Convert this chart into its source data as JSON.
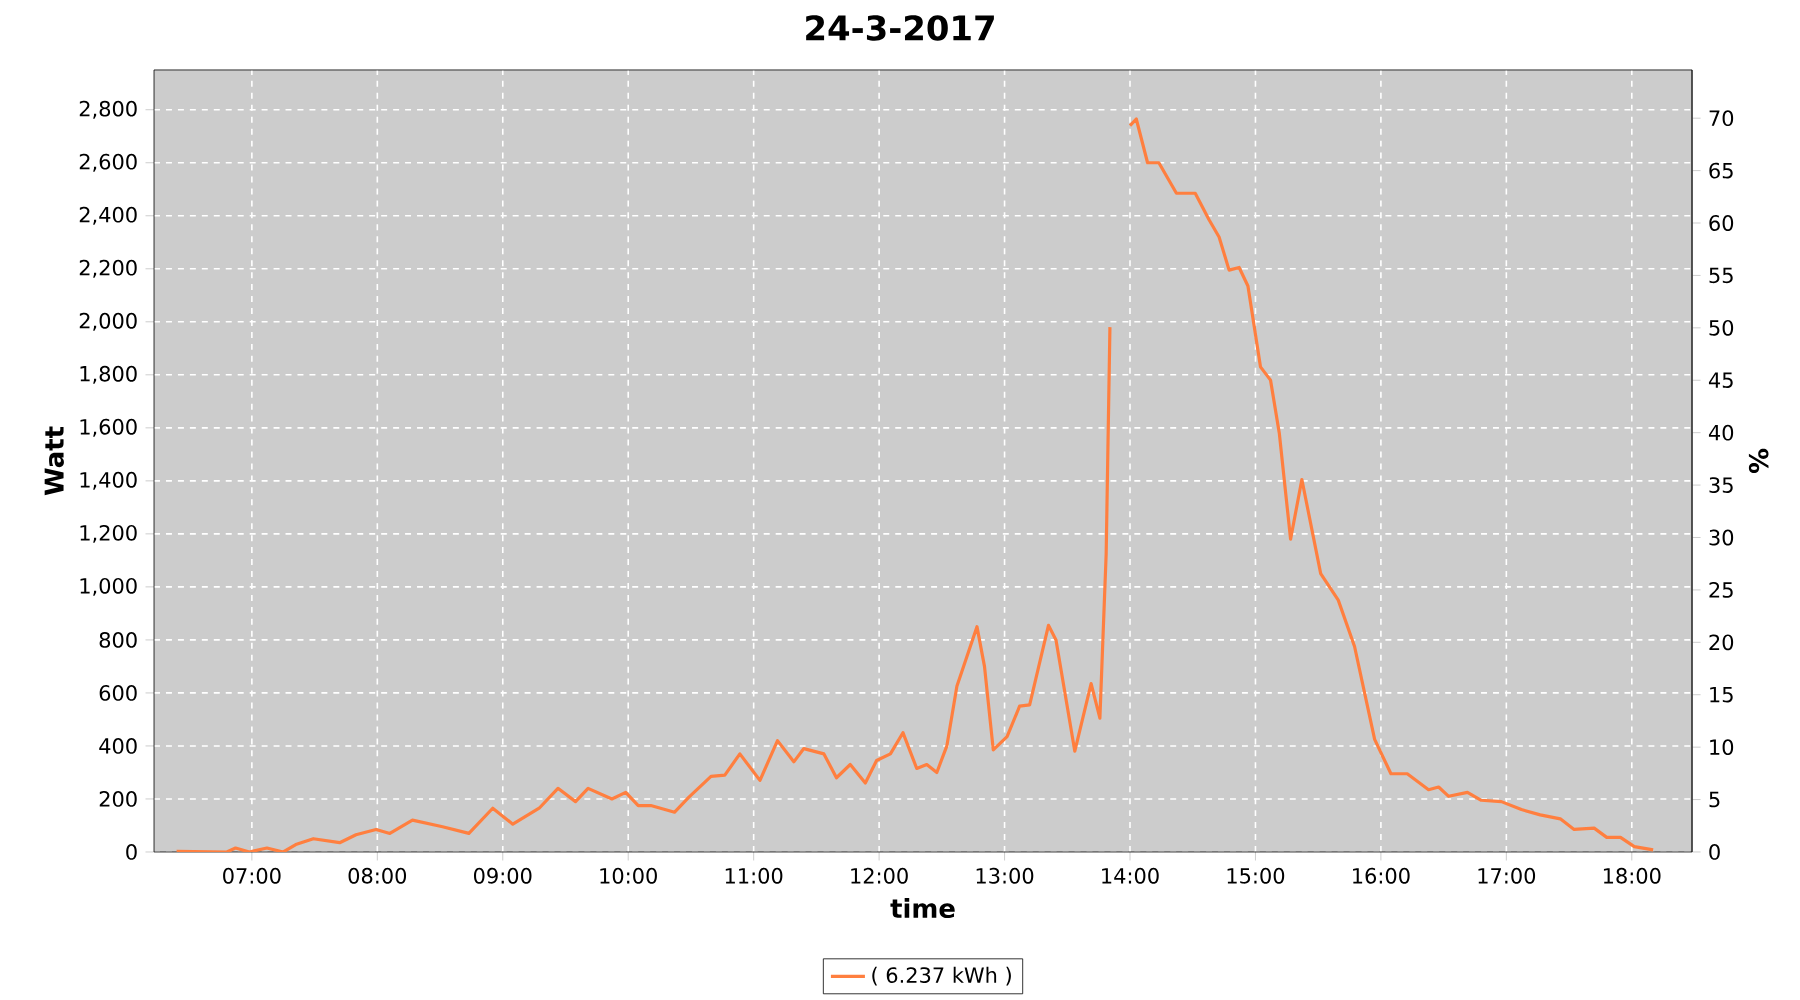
{
  "chart_data": {
    "type": "line",
    "title": "24-3-2017",
    "xlabel": "time",
    "ylabel": "Watt",
    "y2label": "%",
    "xlim": [
      6.22,
      18.48
    ],
    "xticks": [
      {
        "value": 7,
        "label": "07:00"
      },
      {
        "value": 8,
        "label": "08:00"
      },
      {
        "value": 9,
        "label": "09:00"
      },
      {
        "value": 10,
        "label": "10:00"
      },
      {
        "value": 11,
        "label": "11:00"
      },
      {
        "value": 12,
        "label": "12:00"
      },
      {
        "value": 13,
        "label": "13:00"
      },
      {
        "value": 14,
        "label": "14:00"
      },
      {
        "value": 15,
        "label": "15:00"
      },
      {
        "value": 16,
        "label": "16:00"
      },
      {
        "value": 17,
        "label": "17:00"
      },
      {
        "value": 18,
        "label": "18:00"
      }
    ],
    "ylim": [
      0,
      2950
    ],
    "yticks": [
      0,
      200,
      400,
      600,
      800,
      {
        "value": 1000,
        "label": "1,000"
      },
      {
        "value": 1200,
        "label": "1,200"
      },
      {
        "value": 1400,
        "label": "1,400"
      },
      {
        "value": 1600,
        "label": "1,600"
      },
      {
        "value": 1800,
        "label": "1,800"
      },
      {
        "value": 2000,
        "label": "2,000"
      },
      {
        "value": 2200,
        "label": "2,200"
      },
      {
        "value": 2400,
        "label": "2,400"
      },
      {
        "value": 2600,
        "label": "2,600"
      },
      {
        "value": 2800,
        "label": "2,800"
      }
    ],
    "y2lim": [
      0,
      74.6
    ],
    "y2ticks": [
      0,
      5,
      10,
      15,
      20,
      25,
      30,
      35,
      40,
      45,
      50,
      55,
      60,
      65,
      70
    ],
    "grid": true,
    "legend": "bottom",
    "series": [
      {
        "name": "( 6.237 kWh )",
        "color": "#ff7f3f",
        "x": [
          6.4,
          6.8,
          6.87,
          6.98,
          7.12,
          7.25,
          7.35,
          7.49,
          7.7,
          7.83,
          7.99,
          8.1,
          8.28,
          8.52,
          8.73,
          8.92,
          9.08,
          9.29,
          9.44,
          9.58,
          9.68,
          9.87,
          9.98,
          10.08,
          10.18,
          10.37,
          10.48,
          10.66,
          10.77,
          10.89,
          11.05,
          11.19,
          11.32,
          11.4,
          11.56,
          11.66,
          11.77,
          11.89,
          11.98,
          12.09,
          12.19,
          12.3,
          12.38,
          12.46,
          12.54,
          12.62,
          12.78,
          12.84,
          12.91,
          13.02,
          13.12,
          13.2,
          13.35,
          13.41,
          13.56,
          13.69,
          13.76,
          13.81,
          13.84,
          13.88,
          13.94,
          14.0,
          14.05,
          14.14,
          14.23,
          14.37,
          14.52,
          14.63,
          14.71,
          14.79,
          14.87,
          14.94,
          15.04,
          15.12,
          15.19,
          15.28,
          15.37,
          15.52,
          15.66,
          15.79,
          15.95,
          16.08,
          16.21,
          16.38,
          16.46,
          16.54,
          16.69,
          16.8,
          16.96,
          17.12,
          17.27,
          17.43,
          17.54,
          17.7,
          17.8,
          17.91,
          18.02,
          18.17
        ],
        "values": [
          2,
          0,
          15,
          0,
          15,
          0,
          28,
          50,
          35,
          65,
          85,
          70,
          120,
          95,
          70,
          165,
          105,
          165,
          240,
          190,
          240,
          200,
          225,
          175,
          175,
          150,
          205,
          285,
          290,
          370,
          270,
          420,
          340,
          390,
          370,
          280,
          330,
          260,
          345,
          370,
          450,
          315,
          330,
          300,
          400,
          625,
          850,
          700,
          385,
          435,
          550,
          555,
          855,
          800,
          380,
          635,
          505,
          1125,
          1980,
          null,
          null,
          2740,
          2765,
          2600,
          2600,
          2485,
          2485,
          2385,
          2320,
          2195,
          2205,
          2135,
          1830,
          1780,
          1580,
          1180,
          1405,
          1050,
          950,
          775,
          425,
          295,
          295,
          235,
          245,
          210,
          225,
          195,
          190,
          160,
          140,
          125,
          85,
          90,
          55,
          55,
          20,
          8
        ]
      }
    ]
  }
}
